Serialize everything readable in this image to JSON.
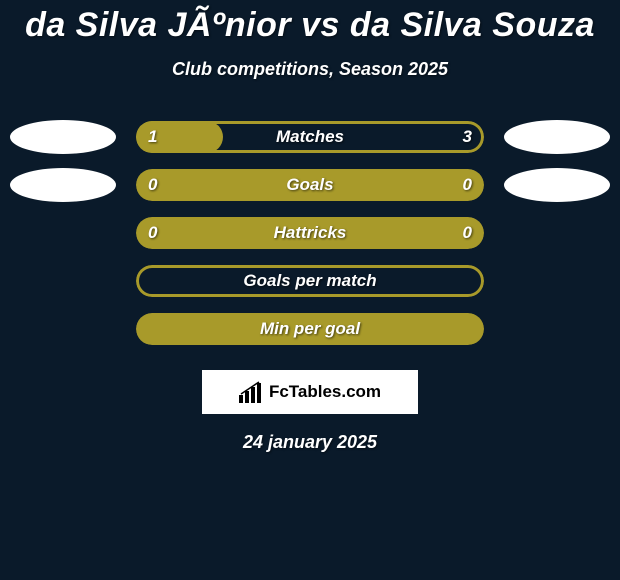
{
  "title": "da Silva JÃºnior vs da Silva Souza",
  "subtitle": "Club competitions, Season 2025",
  "date": "24 january 2025",
  "logo_text": "FcTables.com",
  "colors": {
    "background": "#0a1a2a",
    "bar_fill": "#a89a2a",
    "bar_border": "#a89a2a",
    "oval": "#ffffff",
    "text": "#ffffff"
  },
  "rows": [
    {
      "label": "Matches",
      "left_value": "1",
      "right_value": "3",
      "fill_percent": 25,
      "has_values": true,
      "show_left_oval": true,
      "show_right_oval": true,
      "border_only": false
    },
    {
      "label": "Goals",
      "left_value": "0",
      "right_value": "0",
      "fill_percent": 100,
      "has_values": true,
      "show_left_oval": true,
      "show_right_oval": true,
      "border_only": false
    },
    {
      "label": "Hattricks",
      "left_value": "0",
      "right_value": "0",
      "fill_percent": 100,
      "has_values": true,
      "show_left_oval": false,
      "show_right_oval": false,
      "border_only": false
    },
    {
      "label": "Goals per match",
      "left_value": "",
      "right_value": "",
      "fill_percent": 0,
      "has_values": false,
      "show_left_oval": false,
      "show_right_oval": false,
      "border_only": true
    },
    {
      "label": "Min per goal",
      "left_value": "",
      "right_value": "",
      "fill_percent": 100,
      "has_values": false,
      "show_left_oval": false,
      "show_right_oval": false,
      "border_only": false
    }
  ]
}
